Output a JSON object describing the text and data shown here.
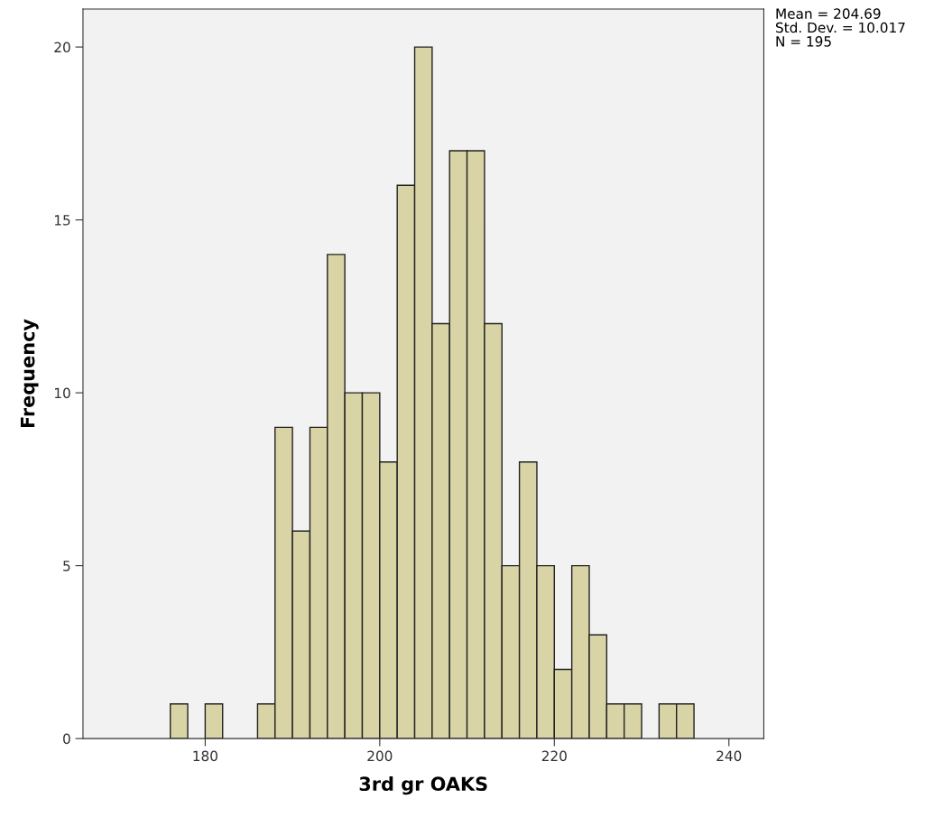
{
  "chart_data": {
    "type": "histogram",
    "xlabel": "3rd gr OAKS",
    "ylabel": "Frequency",
    "bins": [
      176,
      178,
      180,
      182,
      184,
      186,
      188,
      190,
      192,
      194,
      196,
      198,
      200,
      202,
      204,
      206,
      208,
      210,
      212,
      214,
      216,
      218,
      220,
      222,
      224,
      226,
      228,
      230,
      232,
      234,
      236
    ],
    "values": [
      1,
      0,
      1,
      0,
      0,
      1,
      9,
      6,
      9,
      14,
      10,
      10,
      8,
      16,
      20,
      12,
      17,
      17,
      12,
      5,
      8,
      5,
      2,
      5,
      3,
      1,
      1,
      0,
      1,
      1
    ],
    "color": "#d9d4a5",
    "xlim": [
      166,
      244
    ],
    "xticks": [
      180,
      200,
      220,
      240
    ],
    "ylim": [
      0,
      21.1
    ],
    "yticks": [
      0,
      5,
      10,
      15,
      20
    ],
    "grid": false,
    "annotations": [
      "Mean = 204.69",
      "Std. Dev. = 10.017",
      "N = 195"
    ]
  }
}
